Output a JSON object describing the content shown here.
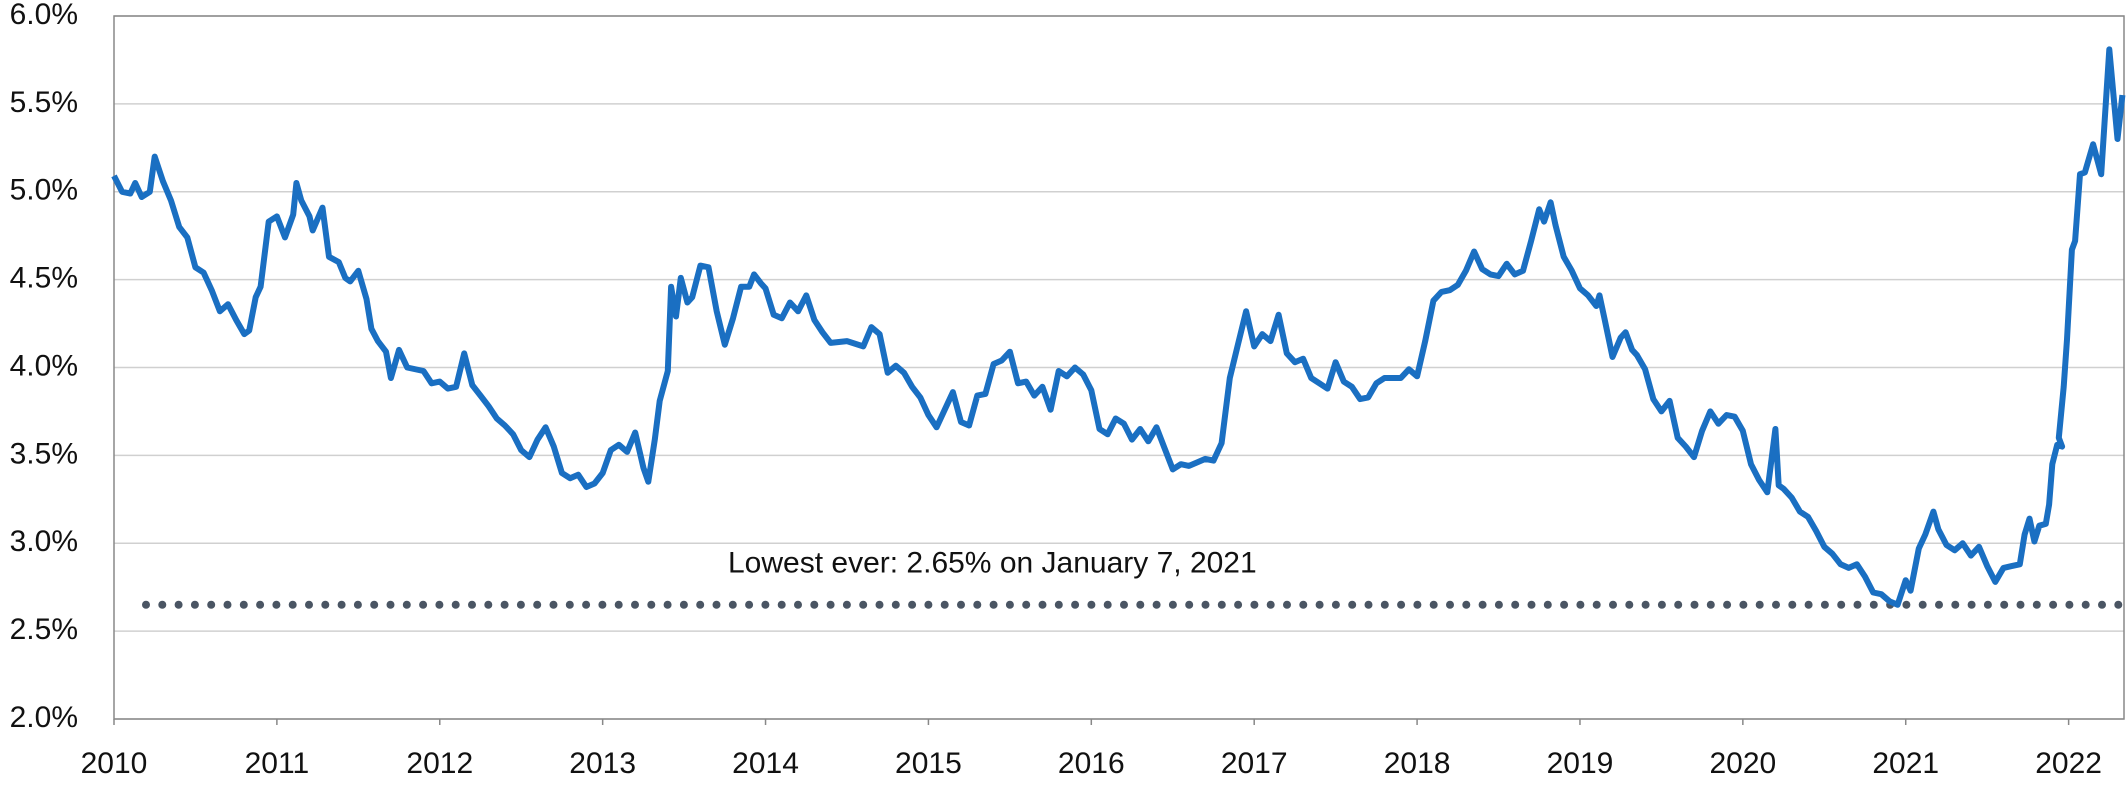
{
  "chart_data": {
    "type": "line",
    "annotation": {
      "text": "Lowest ever: 2.65% on January 7, 2021",
      "value": 2.65,
      "color": "#4a5563"
    },
    "xlim": [
      2010,
      2022.34
    ],
    "xticks": [
      2010,
      2011,
      2012,
      2013,
      2014,
      2015,
      2016,
      2017,
      2018,
      2019,
      2020,
      2021,
      2022
    ],
    "ylim": [
      2,
      6
    ],
    "yticks": [
      {
        "value": 2,
        "label": "2.0%"
      },
      {
        "value": 2.5,
        "label": "2.5%"
      },
      {
        "value": 3,
        "label": "3.0%"
      },
      {
        "value": 3.5,
        "label": "3.5%"
      },
      {
        "value": 4,
        "label": "4.0%"
      },
      {
        "value": 4.5,
        "label": "4.5%"
      },
      {
        "value": 5,
        "label": "5.0%"
      },
      {
        "value": 5.5,
        "label": "5.5%"
      },
      {
        "value": 6,
        "label": "6.0%"
      }
    ],
    "grid": true,
    "x": [
      2010.0,
      2010.05,
      2010.1,
      2010.13,
      2010.17,
      2010.22,
      2010.25,
      2010.3,
      2010.35,
      2010.4,
      2010.45,
      2010.5,
      2010.55,
      2010.6,
      2010.65,
      2010.7,
      2010.75,
      2010.8,
      2010.83,
      2010.87,
      2010.9,
      2010.95,
      2011.0,
      2011.05,
      2011.1,
      2011.12,
      2011.15,
      2011.2,
      2011.22,
      2011.28,
      2011.32,
      2011.38,
      2011.42,
      2011.45,
      2011.5,
      2011.55,
      2011.58,
      2011.62,
      2011.67,
      2011.7,
      2011.75,
      2011.8,
      2011.9,
      2011.95,
      2012.0,
      2012.05,
      2012.1,
      2012.15,
      2012.2,
      2012.25,
      2012.3,
      2012.35,
      2012.4,
      2012.45,
      2012.5,
      2012.55,
      2012.6,
      2012.65,
      2012.7,
      2012.75,
      2012.8,
      2012.85,
      2012.9,
      2012.95,
      2013.0,
      2013.05,
      2013.1,
      2013.15,
      2013.2,
      2013.25,
      2013.28,
      2013.32,
      2013.35,
      2013.4,
      2013.42,
      2013.45,
      2013.48,
      2013.52,
      2013.55,
      2013.6,
      2013.65,
      2013.7,
      2013.75,
      2013.8,
      2013.85,
      2013.9,
      2013.93,
      2013.97,
      2014.0,
      2014.05,
      2014.1,
      2014.15,
      2014.2,
      2014.25,
      2014.3,
      2014.35,
      2014.4,
      2014.5,
      2014.6,
      2014.65,
      2014.7,
      2014.75,
      2014.8,
      2014.85,
      2014.9,
      2014.95,
      2015.0,
      2015.05,
      2015.1,
      2015.15,
      2015.2,
      2015.25,
      2015.3,
      2015.35,
      2015.4,
      2015.45,
      2015.5,
      2015.55,
      2015.6,
      2015.65,
      2015.7,
      2015.75,
      2015.8,
      2015.85,
      2015.9,
      2015.95,
      2016.0,
      2016.05,
      2016.1,
      2016.15,
      2016.2,
      2016.25,
      2016.3,
      2016.35,
      2016.4,
      2016.45,
      2016.5,
      2016.55,
      2016.6,
      2016.65,
      2016.7,
      2016.75,
      2016.8,
      2016.85,
      2016.9,
      2016.95,
      2017.0,
      2017.05,
      2017.1,
      2017.15,
      2017.2,
      2017.25,
      2017.3,
      2017.35,
      2017.4,
      2017.45,
      2017.5,
      2017.55,
      2017.6,
      2017.65,
      2017.7,
      2017.75,
      2017.8,
      2017.9,
      2017.95,
      2018.0,
      2018.05,
      2018.1,
      2018.15,
      2018.2,
      2018.25,
      2018.3,
      2018.35,
      2018.4,
      2018.45,
      2018.5,
      2018.55,
      2018.6,
      2018.65,
      2018.7,
      2018.75,
      2018.78,
      2018.82,
      2018.85,
      2018.9,
      2018.95,
      2019.0,
      2019.05,
      2019.1,
      2019.12,
      2019.15,
      2019.2,
      2019.25,
      2019.28,
      2019.32,
      2019.35,
      2019.4,
      2019.45,
      2019.5,
      2019.55,
      2019.6,
      2019.65,
      2019.7,
      2019.75,
      2019.8,
      2019.85,
      2019.9,
      2019.95,
      2020.0,
      2020.05,
      2020.1,
      2020.15,
      2020.2,
      2020.22,
      2020.25,
      2020.3,
      2020.35,
      2020.4,
      2020.45,
      2020.5,
      2020.55,
      2020.6,
      2020.65,
      2020.7,
      2020.75,
      2020.8,
      2020.85,
      2020.9,
      2020.95,
      2021.0,
      2021.03,
      2021.08,
      2021.12,
      2021.17,
      2021.2,
      2021.25,
      2021.3,
      2021.35,
      2021.4,
      2021.45,
      2021.5,
      2021.55,
      2021.6,
      2021.65,
      2021.7,
      2021.73,
      2021.76,
      2021.79,
      2021.82,
      2021.86,
      2021.88,
      2021.9,
      2021.93,
      2021.96,
      2021.94,
      2021.97,
      2021.99,
      2022.02,
      2022.04,
      2022.07,
      2022.1,
      2022.15,
      2022.2,
      2022.25,
      2022.3,
      2022.33
    ],
    "series": [
      {
        "color": "#1a6fc2",
        "values": [
          5.09,
          5.0,
          4.99,
          5.05,
          4.97,
          5.0,
          5.2,
          5.06,
          4.95,
          4.8,
          4.74,
          4.57,
          4.54,
          4.44,
          4.32,
          4.36,
          4.27,
          4.19,
          4.21,
          4.4,
          4.46,
          4.83,
          4.86,
          4.74,
          4.87,
          5.05,
          4.95,
          4.86,
          4.78,
          4.91,
          4.63,
          4.6,
          4.51,
          4.49,
          4.55,
          4.39,
          4.22,
          4.15,
          4.09,
          3.94,
          4.1,
          4.0,
          3.98,
          3.91,
          3.92,
          3.88,
          3.89,
          4.08,
          3.9,
          3.84,
          3.78,
          3.71,
          3.67,
          3.62,
          3.53,
          3.49,
          3.59,
          3.66,
          3.55,
          3.4,
          3.37,
          3.39,
          3.32,
          3.34,
          3.4,
          3.53,
          3.56,
          3.52,
          3.63,
          3.43,
          3.35,
          3.59,
          3.81,
          3.98,
          4.46,
          4.29,
          4.51,
          4.37,
          4.4,
          4.58,
          4.57,
          4.32,
          4.13,
          4.28,
          4.46,
          4.46,
          4.53,
          4.48,
          4.45,
          4.3,
          4.28,
          4.37,
          4.32,
          4.41,
          4.27,
          4.2,
          4.14,
          4.15,
          4.12,
          4.23,
          4.19,
          3.97,
          4.01,
          3.97,
          3.89,
          3.83,
          3.73,
          3.66,
          3.76,
          3.86,
          3.69,
          3.67,
          3.84,
          3.85,
          4.02,
          4.04,
          4.09,
          3.91,
          3.92,
          3.84,
          3.89,
          3.76,
          3.98,
          3.95,
          4.0,
          3.96,
          3.87,
          3.65,
          3.62,
          3.71,
          3.68,
          3.59,
          3.65,
          3.58,
          3.66,
          3.54,
          3.42,
          3.45,
          3.44,
          3.46,
          3.48,
          3.47,
          3.57,
          3.94,
          4.13,
          4.32,
          4.12,
          4.19,
          4.15,
          4.3,
          4.08,
          4.03,
          4.05,
          3.94,
          3.91,
          3.88,
          4.03,
          3.92,
          3.89,
          3.82,
          3.83,
          3.91,
          3.94,
          3.94,
          3.99,
          3.95,
          4.15,
          4.38,
          4.43,
          4.44,
          4.47,
          4.55,
          4.66,
          4.56,
          4.53,
          4.52,
          4.59,
          4.53,
          4.55,
          4.72,
          4.9,
          4.83,
          4.94,
          4.81,
          4.63,
          4.55,
          4.45,
          4.41,
          4.35,
          4.41,
          4.28,
          4.06,
          4.17,
          4.2,
          4.1,
          4.07,
          3.99,
          3.82,
          3.75,
          3.81,
          3.6,
          3.55,
          3.49,
          3.64,
          3.75,
          3.68,
          3.73,
          3.72,
          3.64,
          3.45,
          3.36,
          3.29,
          3.65,
          3.33,
          3.31,
          3.26,
          3.18,
          3.15,
          3.07,
          2.98,
          2.94,
          2.88,
          2.86,
          2.88,
          2.81,
          2.72,
          2.71,
          2.67,
          2.65,
          2.79,
          2.73,
          2.97,
          3.05,
          3.18,
          3.08,
          2.99,
          2.96,
          3.0,
          2.93,
          2.98,
          2.87,
          2.78,
          2.86,
          2.87,
          2.88,
          3.05,
          3.14,
          3.01,
          3.1,
          3.11,
          3.22,
          3.45,
          3.56,
          3.55,
          3.6,
          3.89,
          4.16,
          4.67,
          4.72,
          5.1,
          5.11,
          5.27,
          5.1,
          5.81,
          5.3,
          5.55
        ]
      }
    ]
  }
}
